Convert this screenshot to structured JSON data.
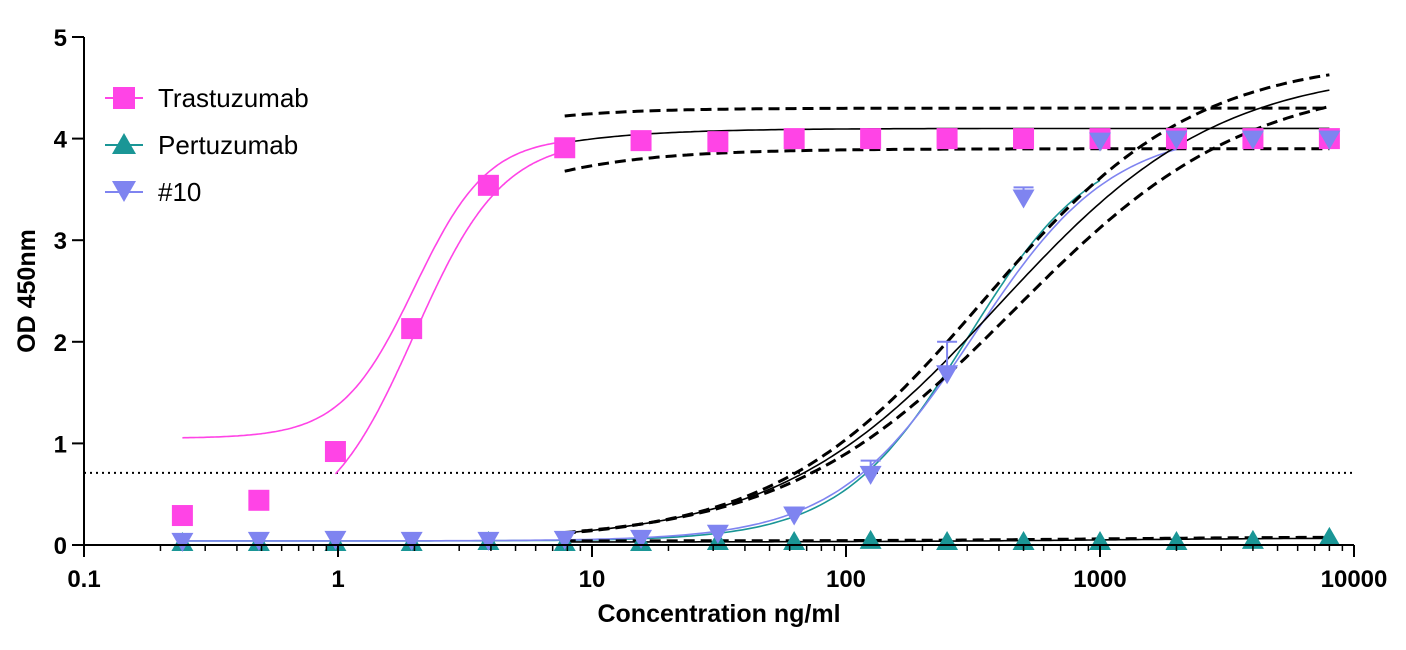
{
  "chart_data": {
    "type": "scatter",
    "xscale": "log",
    "xlabel": "Concentration ng/ml",
    "ylabel": "OD 450nm",
    "xlim": [
      0.1,
      10000
    ],
    "ylim": [
      0,
      5
    ],
    "xticks": [
      0.1,
      1,
      10,
      100,
      1000,
      10000
    ],
    "xtick_labels": [
      "0.1",
      "1",
      "10",
      "100",
      "1000",
      "10000"
    ],
    "yticks": [
      0,
      1,
      2,
      3,
      4,
      5
    ],
    "ytick_labels": [
      "0",
      "1",
      "2",
      "3",
      "4",
      "5"
    ],
    "legend_position": "top-left",
    "cutoff_line": {
      "y": 0.71,
      "style": "dotted"
    },
    "series": [
      {
        "name": "Trastuzumab",
        "color": "#ff44e6",
        "marker": "square",
        "x": [
          0.244,
          0.488,
          0.977,
          1.95,
          3.91,
          7.81,
          15.6,
          31.3,
          62.5,
          125,
          250,
          500,
          1000,
          2000,
          4000,
          8000
        ],
        "y": [
          0.29,
          0.44,
          0.92,
          2.13,
          3.54,
          3.91,
          3.98,
          3.97,
          4.0,
          4.0,
          4.0,
          4.0,
          4.0,
          4.0,
          4.0,
          4.0
        ]
      },
      {
        "name": "Pertuzumab",
        "color": "#1a9696",
        "marker": "triangle-up",
        "x": [
          0.244,
          0.488,
          0.977,
          1.95,
          3.91,
          7.81,
          15.6,
          31.3,
          62.5,
          125,
          250,
          500,
          1000,
          2000,
          4000,
          8000
        ],
        "y": [
          0.02,
          0.02,
          0.02,
          0.02,
          0.03,
          0.02,
          0.02,
          0.03,
          0.03,
          0.04,
          0.03,
          0.03,
          0.03,
          0.03,
          0.04,
          0.07
        ]
      },
      {
        "name": "#10",
        "color": "#7f84f0",
        "marker": "triangle-down",
        "x": [
          0.244,
          0.488,
          0.977,
          1.95,
          3.91,
          7.81,
          15.6,
          31.3,
          62.5,
          125,
          250,
          500,
          1000,
          2000,
          4000,
          8000
        ],
        "y": [
          0.04,
          0.05,
          0.06,
          0.05,
          0.05,
          0.06,
          0.07,
          0.12,
          0.3,
          0.7,
          1.69,
          3.42,
          3.98,
          4.0,
          4.0,
          4.0
        ],
        "error_upper": [
          0,
          0,
          0,
          0,
          0,
          0,
          0,
          0,
          0,
          0.83,
          2.0,
          3.52,
          0,
          0,
          0,
          0
        ]
      }
    ],
    "fits": [
      {
        "name": "Trastuzumab fit",
        "color": "#ff44e6",
        "bottom": 1.05,
        "top": 4.02,
        "ec50": 2.0,
        "hill": 3.0,
        "xrange": [
          0.244,
          7.81
        ]
      },
      {
        "name": "Trastuzumab fit 2",
        "color": "#ff44e6",
        "bottom": 0.15,
        "top": 4.0,
        "ec50": 2.0,
        "hill": 2.5,
        "xrange": [
          0.977,
          7.81
        ]
      },
      {
        "name": "Trastuzumab high-range fit",
        "color": "#000000",
        "bottom": 0.0,
        "top": 4.1,
        "ec50": 0.6,
        "hill": 1.3,
        "xrange": [
          7.81,
          8000
        ]
      },
      {
        "name": "Trastuzumab fit lower 95% band",
        "color": "#000000",
        "dashed": true,
        "bottom": 0.0,
        "top": 3.9,
        "ec50": 0.75,
        "hill": 1.2,
        "xrange": [
          7.81,
          8000
        ]
      },
      {
        "name": "Trastuzumab fit upper 95% band",
        "color": "#000000",
        "dashed": true,
        "bottom": 0.0,
        "top": 4.3,
        "ec50": 0.45,
        "hill": 1.4,
        "xrange": [
          7.81,
          8000
        ]
      },
      {
        "name": "Pertuzumab fit",
        "color": "#1a9696",
        "bottom": 0.04,
        "top": 4.02,
        "ec50": 300,
        "hill": 1.75,
        "xrange": [
          0.244,
          1000
        ]
      },
      {
        "name": "#10 fit",
        "color": "#7f84f0",
        "bottom": 0.04,
        "top": 4.1,
        "ec50": 320,
        "hill": 1.6,
        "xrange": [
          0.244,
          2000
        ]
      },
      {
        "name": "#10 black fit",
        "color": "#000000",
        "bottom": 0.03,
        "top": 4.7,
        "ec50": 400,
        "hill": 1.0,
        "xrange": [
          7.81,
          8000
        ]
      },
      {
        "name": "#10 fit upper 95% band",
        "color": "#000000",
        "dashed": true,
        "bottom": 0.03,
        "top": 4.8,
        "ec50": 350,
        "hill": 1.05,
        "xrange": [
          7.81,
          8000
        ]
      },
      {
        "name": "#10 fit lower 95% band",
        "color": "#000000",
        "dashed": true,
        "bottom": 0.03,
        "top": 4.6,
        "ec50": 460,
        "hill": 0.95,
        "xrange": [
          7.81,
          8000
        ]
      },
      {
        "name": "Pertuzumab baseline band",
        "color": "#000000",
        "dashed": true,
        "bottom": 0.04,
        "top": 0.08,
        "ec50": 1000,
        "hill": 1.0,
        "xrange": [
          7.81,
          8000
        ]
      },
      {
        "name": "Pertuzumab baseline fit",
        "color": "#000000",
        "bottom": 0.03,
        "top": 0.07,
        "ec50": 1000,
        "hill": 1.0,
        "xrange": [
          7.81,
          8000
        ]
      }
    ]
  }
}
